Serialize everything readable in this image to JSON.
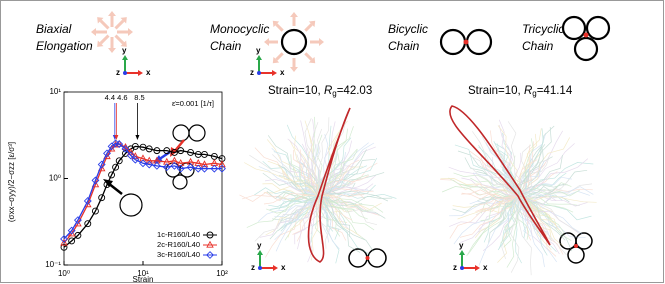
{
  "panels": [
    {
      "title_lines": [
        "Biaxial",
        "Elongation"
      ]
    },
    {
      "title_lines": [
        "Monocyclic",
        "Chain"
      ]
    },
    {
      "title_lines": [
        "Bicyclic",
        "Chain"
      ]
    },
    {
      "title_lines": [
        "Tricyclic",
        "Chain"
      ]
    }
  ],
  "axis_letters": {
    "x": "x",
    "y": "y",
    "z": "z"
  },
  "snapshots": [
    {
      "prefix": "Strain=10, ",
      "symbol": "R",
      "subscript": "g",
      "suffix": "=42.03"
    },
    {
      "prefix": "Strain=10, ",
      "symbol": "R",
      "subscript": "g",
      "suffix": "=41.14"
    }
  ],
  "chart_data": {
    "type": "line",
    "x_label": "Strain",
    "y_label": "(σxx−σyy)/2−σzz [ε/σ³]",
    "rate_label": "ε̇=0.001 [1/τ]",
    "log_x": true,
    "log_y": true,
    "xlim": [
      1,
      100
    ],
    "ylim": [
      0.1,
      10
    ],
    "xticks": [
      {
        "value": 1,
        "label": "10⁰"
      },
      {
        "value": 10,
        "label": "10¹"
      },
      {
        "value": 100,
        "label": "10²"
      }
    ],
    "yticks": [
      {
        "value": 0.1,
        "label": "10⁻¹"
      },
      {
        "value": 1,
        "label": "10⁰"
      },
      {
        "value": 10,
        "label": "10¹"
      }
    ],
    "legend": "lower right",
    "x": [
      1,
      1.25,
      1.5,
      2,
      2.5,
      3,
      3.5,
      4,
      4.5,
      5,
      6,
      7,
      8,
      10,
      12,
      15,
      20,
      25,
      30,
      40,
      50,
      60,
      80,
      100
    ],
    "series": [
      {
        "name": "1c-R160/L40",
        "color": "#000000",
        "marker": "circle",
        "values": [
          0.16,
          0.19,
          0.22,
          0.3,
          0.42,
          0.6,
          0.85,
          1.1,
          1.35,
          1.6,
          1.95,
          2.2,
          2.35,
          2.3,
          2.2,
          2.1,
          2.1,
          2.0,
          2.1,
          2.0,
          1.9,
          1.9,
          1.8,
          1.7
        ]
      },
      {
        "name": "2c-R160/L40",
        "color": "#e8322a",
        "marker": "triangle",
        "values": [
          0.18,
          0.23,
          0.3,
          0.5,
          0.85,
          1.3,
          1.8,
          2.2,
          2.45,
          2.5,
          2.3,
          2.0,
          1.8,
          1.7,
          1.6,
          1.6,
          1.55,
          1.6,
          1.5,
          1.55,
          1.5,
          1.45,
          1.5,
          1.45
        ]
      },
      {
        "name": "3c-R160/L40",
        "color": "#2a3ee8",
        "marker": "diamond",
        "values": [
          0.2,
          0.25,
          0.33,
          0.55,
          0.95,
          1.45,
          1.95,
          2.35,
          2.55,
          2.5,
          2.2,
          1.85,
          1.65,
          1.5,
          1.45,
          1.4,
          1.35,
          1.4,
          1.3,
          1.35,
          1.3,
          1.3,
          1.3,
          1.3
        ]
      }
    ],
    "annotations": [
      {
        "label": "4.4",
        "x": 4.4,
        "color": "#2a3ee8"
      },
      {
        "label": "4.6",
        "x": 4.6,
        "color": "#e8322a"
      },
      {
        "label": "8.5",
        "x": 8.5,
        "color": "#000000"
      }
    ]
  }
}
